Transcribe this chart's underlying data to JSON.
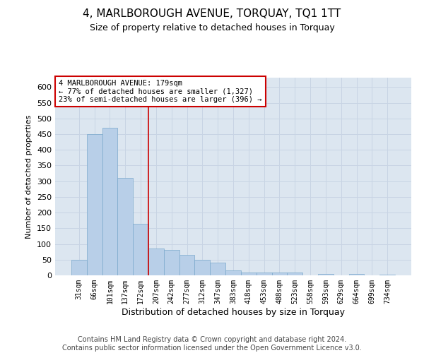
{
  "title": "4, MARLBOROUGH AVENUE, TORQUAY, TQ1 1TT",
  "subtitle": "Size of property relative to detached houses in Torquay",
  "xlabel": "Distribution of detached houses by size in Torquay",
  "ylabel": "Number of detached properties",
  "categories": [
    "31sqm",
    "66sqm",
    "101sqm",
    "137sqm",
    "172sqm",
    "207sqm",
    "242sqm",
    "277sqm",
    "312sqm",
    "347sqm",
    "383sqm",
    "418sqm",
    "453sqm",
    "488sqm",
    "523sqm",
    "558sqm",
    "593sqm",
    "629sqm",
    "664sqm",
    "699sqm",
    "734sqm"
  ],
  "values": [
    50,
    450,
    470,
    310,
    165,
    85,
    80,
    65,
    50,
    40,
    15,
    10,
    10,
    10,
    8,
    0,
    5,
    0,
    5,
    0,
    3
  ],
  "bar_color": "#b8cfe8",
  "bar_edge_color": "#7aa8cc",
  "vline_color": "#cc0000",
  "vline_pos": 4.5,
  "annotation_text": "4 MARLBOROUGH AVENUE: 179sqm\n← 77% of detached houses are smaller (1,327)\n23% of semi-detached houses are larger (396) →",
  "annotation_box_color": "#ffffff",
  "annotation_box_edge_color": "#cc0000",
  "grid_color": "#c8d4e4",
  "background_color": "#dce6f0",
  "ylim": [
    0,
    630
  ],
  "yticks": [
    0,
    50,
    100,
    150,
    200,
    250,
    300,
    350,
    400,
    450,
    500,
    550,
    600
  ],
  "footer1": "Contains HM Land Registry data © Crown copyright and database right 2024.",
  "footer2": "Contains public sector information licensed under the Open Government Licence v3.0.",
  "title_fontsize": 11,
  "subtitle_fontsize": 9,
  "footer_fontsize": 7
}
